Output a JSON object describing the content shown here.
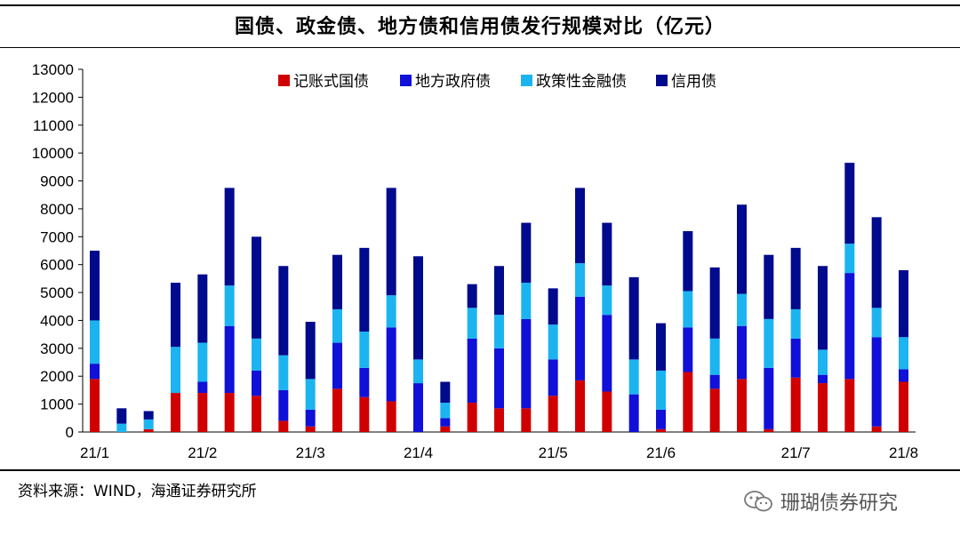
{
  "title": "国债、政金债、地方债和信用债发行规模对比（亿元）",
  "source": "资料来源：WIND，海通证券研究所",
  "watermark": "珊瑚债券研究",
  "chart_data": {
    "type": "bar",
    "stacked": true,
    "title": "国债、政金债、地方债和信用债发行规模对比（亿元）",
    "xlabel": "",
    "ylabel": "",
    "ylim": [
      0,
      13000
    ],
    "yticks": [
      0,
      1000,
      2000,
      3000,
      4000,
      5000,
      6000,
      7000,
      8000,
      9000,
      10000,
      11000,
      12000,
      13000
    ],
    "xtick_labels": [
      {
        "label": "21/1",
        "index": 0
      },
      {
        "label": "21/2",
        "index": 4
      },
      {
        "label": "21/3",
        "index": 8
      },
      {
        "label": "21/4",
        "index": 12
      },
      {
        "label": "21/5",
        "index": 17
      },
      {
        "label": "21/6",
        "index": 21
      },
      {
        "label": "21/7",
        "index": 26
      },
      {
        "label": "21/8",
        "index": 30
      }
    ],
    "legend_position": "top-right",
    "series": [
      {
        "name": "记账式国债",
        "color": "#d00000",
        "values": [
          1900,
          0,
          100,
          1400,
          1400,
          1400,
          1300,
          400,
          200,
          1550,
          1250,
          1100,
          0,
          200,
          1050,
          850,
          850,
          1300,
          1850,
          1450,
          0,
          100,
          2150,
          1550,
          1900,
          100,
          1950,
          1750,
          1900,
          200,
          1800
        ]
      },
      {
        "name": "地方政府债",
        "color": "#1010d8",
        "values": [
          550,
          0,
          0,
          0,
          400,
          2400,
          900,
          1100,
          600,
          1650,
          1050,
          2650,
          1750,
          300,
          2300,
          2150,
          3200,
          1300,
          3000,
          2750,
          1350,
          700,
          1600,
          500,
          1900,
          2200,
          1400,
          300,
          3800,
          3200,
          450
        ]
      },
      {
        "name": "政策性金融债",
        "color": "#1cb4f0",
        "values": [
          1550,
          300,
          350,
          1650,
          1400,
          1450,
          1150,
          1250,
          1100,
          1200,
          1300,
          1150,
          850,
          550,
          1100,
          1200,
          1300,
          1250,
          1200,
          1050,
          1250,
          1400,
          1300,
          1300,
          1150,
          1750,
          1050,
          900,
          1050,
          1050,
          1150
        ]
      },
      {
        "name": "信用债",
        "color": "#000a8c",
        "values": [
          2500,
          550,
          300,
          2300,
          2450,
          3500,
          3650,
          3200,
          2050,
          1950,
          3000,
          3850,
          3700,
          750,
          850,
          1750,
          2150,
          1300,
          2700,
          2250,
          2950,
          1700,
          2150,
          2550,
          3200,
          2300,
          2200,
          3000,
          2900,
          3250,
          2400
        ]
      }
    ]
  }
}
